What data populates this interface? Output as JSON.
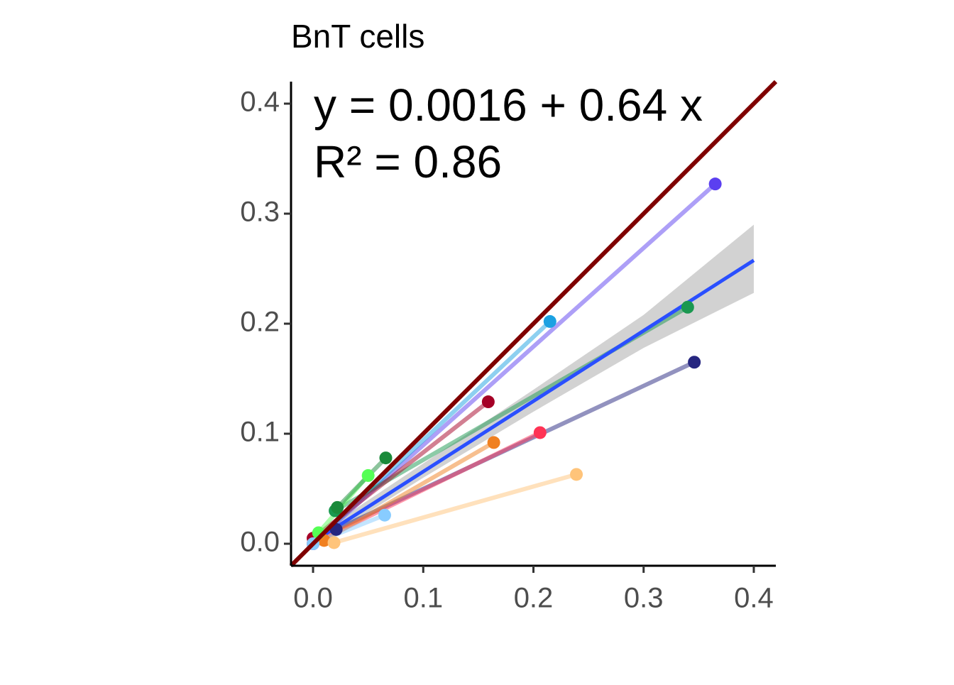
{
  "chart_data": {
    "type": "scatter",
    "title": "BnT cells",
    "annotations": [
      "y = 0.0016 + 0.64 x",
      "R² = 0.86"
    ],
    "xlim": [
      -0.02,
      0.42
    ],
    "ylim": [
      -0.02,
      0.42
    ],
    "xticks": [
      {
        "value": 0,
        "label": "0.0"
      },
      0.1,
      0.2,
      0.3,
      0.4
    ],
    "yticks": [
      {
        "value": 0,
        "label": "0.0"
      },
      0.1,
      0.2,
      0.3,
      0.4
    ],
    "series": [
      {
        "color": "#5b3ff0",
        "x": [
          0.0,
          0.365
        ],
        "values": [
          0.0,
          0.327
        ]
      },
      {
        "color": "#1ba1e2",
        "x": [
          0.005,
          0.215
        ],
        "values": [
          0.005,
          0.202
        ]
      },
      {
        "color": "#1a9850",
        "x": [
          0.02,
          0.34
        ],
        "values": [
          0.03,
          0.215
        ]
      },
      {
        "color": "#262680",
        "x": [
          0.021,
          0.346
        ],
        "values": [
          0.013,
          0.165
        ]
      },
      {
        "color": "#a50026",
        "x": [
          0.0,
          0.159
        ],
        "values": [
          0.005,
          0.129
        ]
      },
      {
        "color": "#ff3355",
        "x": [
          0.0,
          0.206
        ],
        "values": [
          0.0,
          0.101
        ]
      },
      {
        "color": "#f08020",
        "x": [
          0.01,
          0.164
        ],
        "values": [
          0.003,
          0.092
        ]
      },
      {
        "color": "#ffc47a",
        "x": [
          0.019,
          0.239
        ],
        "values": [
          0.001,
          0.063
        ]
      },
      {
        "color": "#55ff55",
        "x": [
          0.005,
          0.05
        ],
        "values": [
          0.01,
          0.062
        ]
      },
      {
        "color": "#1a8a3a",
        "x": [
          0.022,
          0.066
        ],
        "values": [
          0.033,
          0.078
        ]
      },
      {
        "color": "#88ccff",
        "x": [
          0.0,
          0.065
        ],
        "values": [
          0.0,
          0.026
        ]
      }
    ],
    "fit": {
      "intercept": 0.0016,
      "slope": 0.64,
      "color": "#2a4fff",
      "x_range": [
        0,
        0.4
      ],
      "band": {
        "x": [
          0,
          0.1,
          0.2,
          0.3,
          0.4
        ],
        "lower": [
          -0.003,
          0.06,
          0.12,
          0.178,
          0.228
        ],
        "upper": [
          0.006,
          0.073,
          0.14,
          0.208,
          0.29
        ],
        "color": "#bfbfbf"
      }
    },
    "reference_line": {
      "intercept": 0,
      "slope": 1,
      "color": "#7f0000"
    }
  }
}
